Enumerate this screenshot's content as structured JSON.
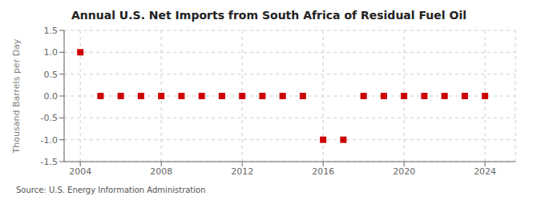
{
  "chart_data": {
    "type": "scatter",
    "title": "Annual U.S. Net Imports from South Africa of Residual Fuel Oil",
    "ylabel": "Thousand Barrels per Day",
    "annotations": [
      "Source: U.S. Energy Information Administration"
    ],
    "x": [
      2004,
      2005,
      2006,
      2007,
      2008,
      2009,
      2010,
      2011,
      2012,
      2013,
      2014,
      2015,
      2016,
      2017,
      2018,
      2019,
      2020,
      2021,
      2022,
      2023,
      2024
    ],
    "values": [
      1,
      0,
      0,
      0,
      0,
      0,
      0,
      0,
      0,
      0,
      0,
      0,
      -1,
      -1,
      0,
      0,
      0,
      0,
      0,
      0,
      0
    ],
    "color": "#cc0000",
    "marker": "square",
    "xlim": [
      2003.2,
      2025.5
    ],
    "xticks": [
      2004,
      2008,
      2012,
      2016,
      2020,
      2024
    ],
    "ylim": [
      -1.5,
      1.5
    ],
    "yticks": [
      -1.5,
      {
        "value": -1,
        "label": "-1.0"
      },
      -0.5,
      {
        "value": 0,
        "label": "0.0"
      },
      0.5,
      {
        "value": 1,
        "label": "1.0"
      },
      1.5
    ],
    "grid": true
  }
}
